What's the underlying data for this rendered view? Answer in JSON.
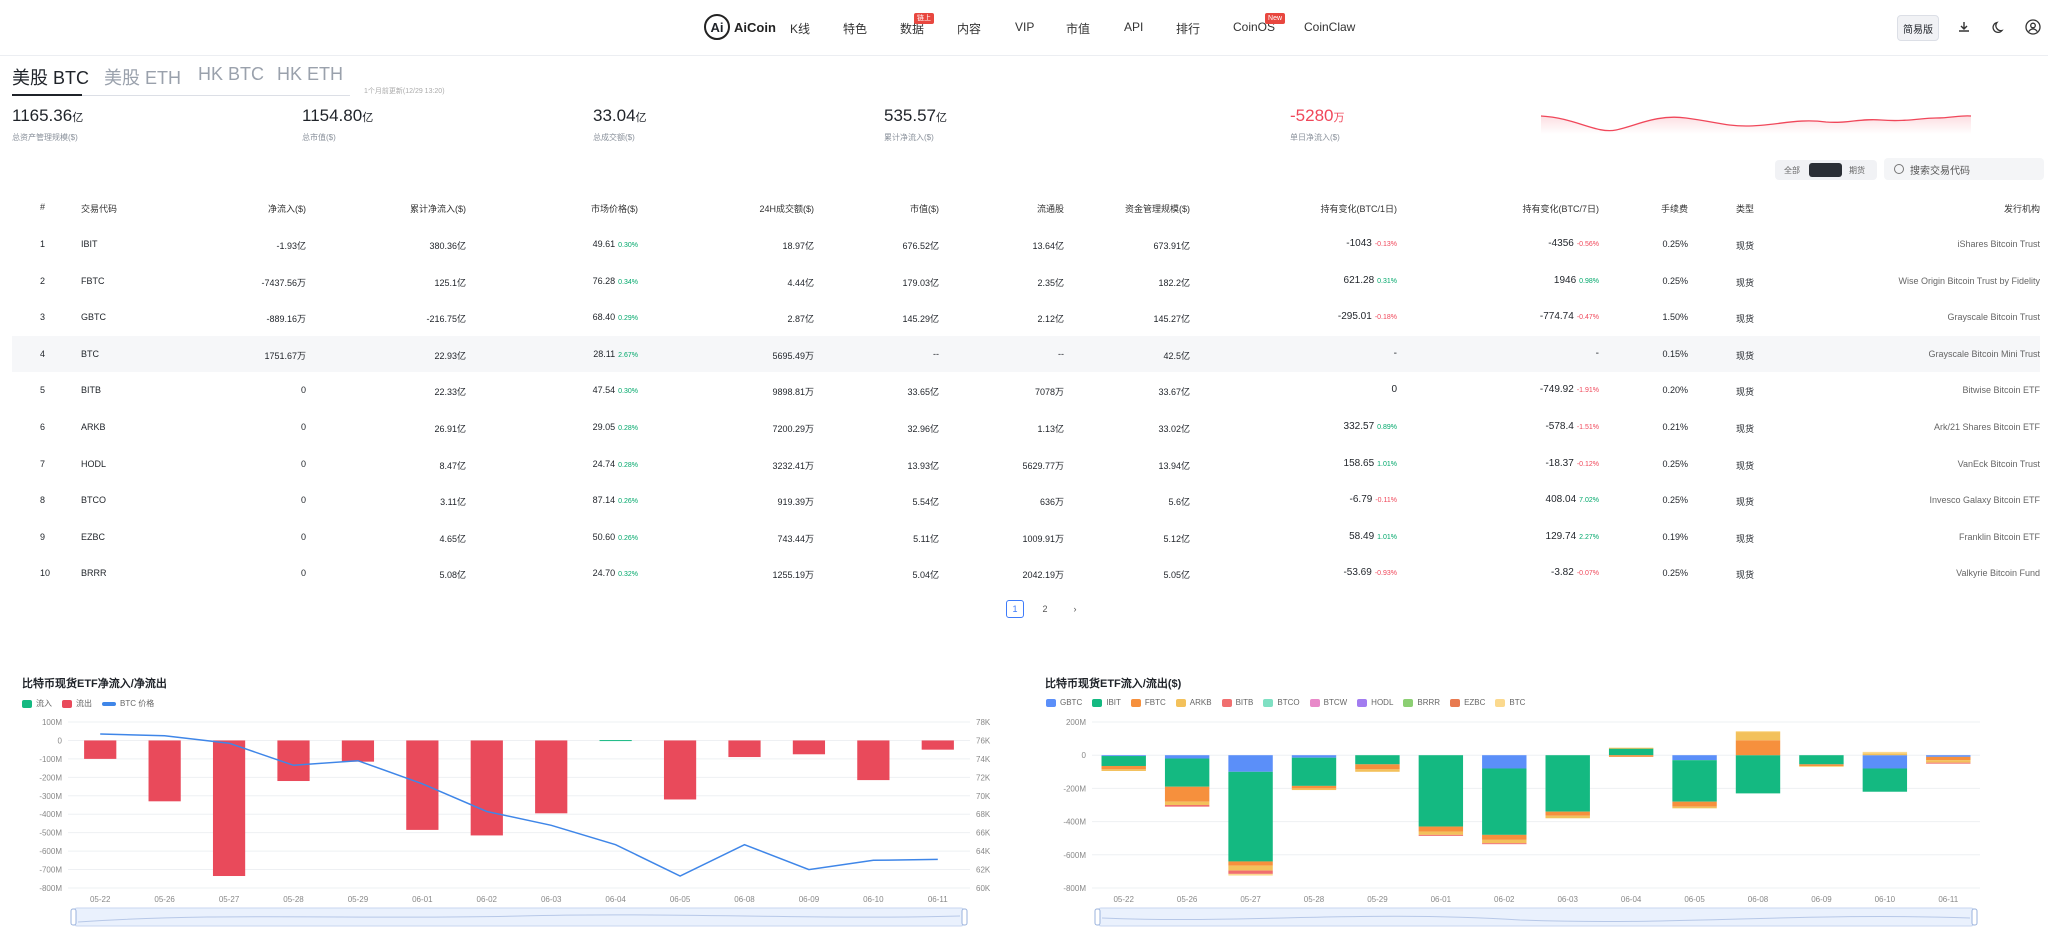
{
  "nav": {
    "logo_mark": "Ai",
    "logo_text": "AiCoin",
    "items": [
      "K线",
      "特色",
      "数据",
      "内容",
      "VIP",
      "市值",
      "API",
      "排行",
      "CoinOS",
      "CoinClaw"
    ],
    "badges": {
      "data": "链上",
      "coinos": "New"
    },
    "simple_mode_label": "简易版"
  },
  "tabs": [
    "美股 BTC",
    "美股 ETH",
    "HK BTC",
    "HK ETH"
  ],
  "update_note": "1个月前更新(12/29 13:20)",
  "stats": [
    {
      "value": "1165.36",
      "unit": "亿",
      "label": "总资产管理规模($)"
    },
    {
      "value": "1154.80",
      "unit": "亿",
      "label": "总市值($)"
    },
    {
      "value": "33.04",
      "unit": "亿",
      "label": "总成交额($)"
    },
    {
      "value": "535.57",
      "unit": "亿",
      "label": "累计净流入($)"
    },
    {
      "value": "-5280",
      "unit": "万",
      "label": "单日净流入($)"
    }
  ],
  "filter": {
    "all": "全部",
    "futures": "期货",
    "search_placeholder": "搜索交易代码"
  },
  "table": {
    "headers": [
      "#",
      "交易代码",
      "净流入($)",
      "累计净流入($)",
      "市场价格($)",
      "24H成交额($)",
      "市值($)",
      "流通股",
      "资金管理规模($)",
      "持有变化(BTC/1日)",
      "持有变化(BTC/7日)",
      "手续费",
      "类型",
      "发行机构"
    ],
    "rows": [
      {
        "n": "1",
        "code": "IBIT",
        "net": "-1.93亿",
        "cum": "380.36亿",
        "price": "49.61",
        "price_pct": "0.30%",
        "vol": "18.97亿",
        "mcap": "676.52亿",
        "shares": "13.64亿",
        "aum": "673.91亿",
        "h1": "-1043",
        "h1p": "-0.13%",
        "h7": "-4356",
        "h7p": "-0.56%",
        "fee": "0.25%",
        "type": "现货",
        "issuer": "iShares Bitcoin Trust"
      },
      {
        "n": "2",
        "code": "FBTC",
        "net": "-7437.56万",
        "cum": "125.1亿",
        "price": "76.28",
        "price_pct": "0.34%",
        "vol": "4.44亿",
        "mcap": "179.03亿",
        "shares": "2.35亿",
        "aum": "182.2亿",
        "h1": "621.28",
        "h1p": "0.31%",
        "h7": "1946",
        "h7p": "0.98%",
        "fee": "0.25%",
        "type": "现货",
        "issuer": "Wise Origin Bitcoin Trust by Fidelity"
      },
      {
        "n": "3",
        "code": "GBTC",
        "net": "-889.16万",
        "cum": "-216.75亿",
        "price": "68.40",
        "price_pct": "0.29%",
        "vol": "2.87亿",
        "mcap": "145.29亿",
        "shares": "2.12亿",
        "aum": "145.27亿",
        "h1": "-295.01",
        "h1p": "-0.18%",
        "h7": "-774.74",
        "h7p": "-0.47%",
        "fee": "1.50%",
        "type": "现货",
        "issuer": "Grayscale Bitcoin Trust"
      },
      {
        "n": "4",
        "code": "BTC",
        "net": "1751.67万",
        "cum": "22.93亿",
        "price": "28.11",
        "price_pct": "2.67%",
        "vol": "5695.49万",
        "mcap": "--",
        "shares": "--",
        "aum": "42.5亿",
        "h1": "-",
        "h1p": "",
        "h7": "-",
        "h7p": "",
        "fee": "0.15%",
        "type": "现货",
        "issuer": "Grayscale Bitcoin Mini Trust"
      },
      {
        "n": "5",
        "code": "BITB",
        "net": "0",
        "cum": "22.33亿",
        "price": "47.54",
        "price_pct": "0.30%",
        "vol": "9898.81万",
        "mcap": "33.65亿",
        "shares": "7078万",
        "aum": "33.67亿",
        "h1": "0",
        "h1p": "",
        "h7": "-749.92",
        "h7p": "-1.91%",
        "fee": "0.20%",
        "type": "现货",
        "issuer": "Bitwise Bitcoin ETF"
      },
      {
        "n": "6",
        "code": "ARKB",
        "net": "0",
        "cum": "26.91亿",
        "price": "29.05",
        "price_pct": "0.28%",
        "vol": "7200.29万",
        "mcap": "32.96亿",
        "shares": "1.13亿",
        "aum": "33.02亿",
        "h1": "332.57",
        "h1p": "0.89%",
        "h7": "-578.4",
        "h7p": "-1.51%",
        "fee": "0.21%",
        "type": "现货",
        "issuer": "Ark/21 Shares Bitcoin ETF"
      },
      {
        "n": "7",
        "code": "HODL",
        "net": "0",
        "cum": "8.47亿",
        "price": "24.74",
        "price_pct": "0.28%",
        "vol": "3232.41万",
        "mcap": "13.93亿",
        "shares": "5629.77万",
        "aum": "13.94亿",
        "h1": "158.65",
        "h1p": "1.01%",
        "h7": "-18.37",
        "h7p": "-0.12%",
        "fee": "0.25%",
        "type": "现货",
        "issuer": "VanEck Bitcoin Trust"
      },
      {
        "n": "8",
        "code": "BTCO",
        "net": "0",
        "cum": "3.11亿",
        "price": "87.14",
        "price_pct": "0.26%",
        "vol": "919.39万",
        "mcap": "5.54亿",
        "shares": "636万",
        "aum": "5.6亿",
        "h1": "-6.79",
        "h1p": "-0.11%",
        "h7": "408.04",
        "h7p": "7.02%",
        "fee": "0.25%",
        "type": "现货",
        "issuer": "Invesco Galaxy Bitcoin ETF"
      },
      {
        "n": "9",
        "code": "EZBC",
        "net": "0",
        "cum": "4.65亿",
        "price": "50.60",
        "price_pct": "0.26%",
        "vol": "743.44万",
        "mcap": "5.11亿",
        "shares": "1009.91万",
        "aum": "5.12亿",
        "h1": "58.49",
        "h1p": "1.01%",
        "h7": "129.74",
        "h7p": "2.27%",
        "fee": "0.19%",
        "type": "现货",
        "issuer": "Franklin Bitcoin ETF"
      },
      {
        "n": "10",
        "code": "BRRR",
        "net": "0",
        "cum": "5.08亿",
        "price": "24.70",
        "price_pct": "0.32%",
        "vol": "1255.19万",
        "mcap": "5.04亿",
        "shares": "2042.19万",
        "aum": "5.05亿",
        "h1": "-53.69",
        "h1p": "-0.93%",
        "h7": "-3.82",
        "h7p": "-0.07%",
        "fee": "0.25%",
        "type": "现货",
        "issuer": "Valkyrie Bitcoin Fund"
      }
    ]
  },
  "pager": {
    "pages": [
      "1",
      "2"
    ],
    "current": "1",
    "next": "›"
  },
  "chart_data": [
    {
      "type": "bar",
      "title": "比特币现货ETF净流入/净流出",
      "legend": [
        "流入",
        "流出",
        "BTC 价格"
      ],
      "categories": [
        "05-22",
        "05-26",
        "05-27",
        "05-28",
        "05-29",
        "06-01",
        "06-02",
        "06-03",
        "06-04",
        "06-05",
        "06-08",
        "06-09",
        "06-10",
        "06-11"
      ],
      "series": [
        {
          "name": "流入",
          "values": [
            0,
            0,
            0,
            0,
            0,
            0,
            0,
            0,
            2,
            0,
            0,
            0,
            0,
            0
          ]
        },
        {
          "name": "流出",
          "values": [
            -100,
            -330,
            -735,
            -220,
            -115,
            -485,
            -515,
            -395,
            0,
            -320,
            -90,
            -75,
            -215,
            -50
          ]
        },
        {
          "name": "BTC 价格",
          "axis": "right",
          "values": [
            76700,
            76500,
            75700,
            73300,
            73800,
            71300,
            68300,
            66800,
            64700,
            61300,
            64700,
            62000,
            63000,
            63100
          ]
        }
      ],
      "ylim": [
        -800,
        100
      ],
      "ylim_right": [
        60000,
        78000
      ],
      "y_ticks": [
        "100M",
        "0",
        "-100M",
        "-200M",
        "-300M",
        "-400M",
        "-500M",
        "-600M",
        "-700M",
        "-800M"
      ],
      "y_right_ticks": [
        "78K",
        "76K",
        "74K",
        "72K",
        "70K",
        "68K",
        "66K",
        "64K",
        "62K",
        "60K"
      ],
      "colors": {
        "inflow": "#15b981",
        "outflow": "#e94a5b",
        "price": "#3f86e8"
      }
    },
    {
      "type": "bar",
      "stacked": true,
      "title": "比特币现货ETF流入/流出($)",
      "legend": [
        "GBTC",
        "IBIT",
        "FBTC",
        "ARKB",
        "BITB",
        "BTCO",
        "BTCW",
        "HODL",
        "BRRR",
        "EZBC",
        "BTC"
      ],
      "categories": [
        "05-22",
        "05-26",
        "05-27",
        "05-28",
        "05-29",
        "06-01",
        "06-02",
        "06-03",
        "06-04",
        "06-05",
        "06-08",
        "06-09",
        "06-10",
        "06-11"
      ],
      "series": [
        {
          "name": "GBTC",
          "values": [
            -5,
            -20,
            -100,
            -15,
            0,
            0,
            -80,
            0,
            0,
            -30,
            0,
            0,
            -80,
            -10
          ]
        },
        {
          "name": "IBIT",
          "values": [
            -60,
            -170,
            -540,
            -170,
            -55,
            -430,
            -400,
            -340,
            40,
            -250,
            -230,
            -55,
            -140,
            0
          ]
        },
        {
          "name": "FBTC",
          "values": [
            -20,
            -90,
            -25,
            -15,
            -30,
            -30,
            -30,
            -25,
            -10,
            -30,
            90,
            -10,
            0,
            -20
          ]
        },
        {
          "name": "ARKB",
          "values": [
            -10,
            -20,
            -30,
            -10,
            -15,
            -20,
            -20,
            -15,
            5,
            -10,
            50,
            0,
            10,
            -15
          ]
        },
        {
          "name": "BITB",
          "values": [
            0,
            -10,
            -20,
            0,
            0,
            -5,
            -5,
            0,
            0,
            0,
            0,
            0,
            0,
            -5
          ]
        },
        {
          "name": "BTC",
          "values": [
            0,
            0,
            -10,
            0,
            0,
            0,
            0,
            0,
            0,
            0,
            5,
            -5,
            10,
            0
          ]
        }
      ],
      "ylim": [
        -800,
        200
      ],
      "y_ticks": [
        "200M",
        "0",
        "-200M",
        "-400M",
        "-600M",
        "-800M"
      ],
      "colors": {
        "GBTC": "#5b8ff9",
        "IBIT": "#14b981",
        "FBTC": "#f6903d",
        "ARKB": "#f3c15b",
        "BITB": "#f06f6f",
        "BTCO": "#7fe0c3",
        "BTCW": "#e889c9",
        "HODL": "#a27cf0",
        "BRRR": "#8ccf73",
        "EZBC": "#e87a50",
        "BTC": "#fbd98e"
      }
    }
  ]
}
